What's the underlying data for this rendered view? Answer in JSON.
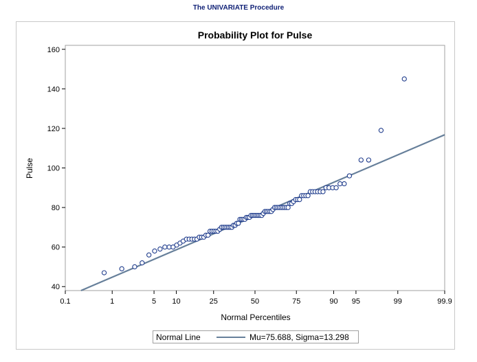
{
  "procedure_title": "The UNIVARIATE Procedure",
  "chart_data": {
    "type": "scatter",
    "title": "Probability Plot for Pulse",
    "xlabel": "Normal Percentiles",
    "ylabel": "Pulse",
    "x_scale": "normal-probability",
    "xlim": [
      0.1,
      99.9
    ],
    "ylim": [
      38,
      162
    ],
    "x_ticks": [
      0.1,
      1,
      5,
      10,
      25,
      50,
      75,
      90,
      95,
      99,
      99.9
    ],
    "x_tick_labels": [
      "0.1",
      "1",
      "5",
      "10",
      "25",
      "50",
      "75",
      "90",
      "95",
      "99",
      "99.9"
    ],
    "y_ticks": [
      40,
      60,
      80,
      100,
      120,
      140,
      160
    ],
    "y_tick_labels": [
      "40",
      "60",
      "80",
      "100",
      "120",
      "140",
      "160"
    ],
    "grid": false,
    "marker_color": "#1f3c8c",
    "line_color": "#667f9a",
    "normal_line": {
      "mu": 75.688,
      "sigma": 13.298
    },
    "points": [
      [
        0.7,
        47
      ],
      [
        1.5,
        49
      ],
      [
        2.5,
        50
      ],
      [
        3.3,
        52
      ],
      [
        4.2,
        56
      ],
      [
        5.1,
        58
      ],
      [
        6.1,
        59
      ],
      [
        7.1,
        60
      ],
      [
        8.1,
        60
      ],
      [
        9.1,
        60
      ],
      [
        10.1,
        61
      ],
      [
        11.1,
        62
      ],
      [
        12.1,
        63
      ],
      [
        13.2,
        64
      ],
      [
        14.2,
        64
      ],
      [
        15.2,
        64
      ],
      [
        16.2,
        64
      ],
      [
        17.2,
        64
      ],
      [
        18.2,
        65
      ],
      [
        19.2,
        65
      ],
      [
        20.2,
        65
      ],
      [
        21.2,
        66
      ],
      [
        22.2,
        66
      ],
      [
        23.2,
        68
      ],
      [
        24.2,
        68
      ],
      [
        25.2,
        68
      ],
      [
        26.2,
        68
      ],
      [
        27.2,
        68
      ],
      [
        28.3,
        69
      ],
      [
        29.3,
        70
      ],
      [
        30.3,
        70
      ],
      [
        31.3,
        70
      ],
      [
        32.3,
        70
      ],
      [
        33.3,
        70
      ],
      [
        34.3,
        70
      ],
      [
        35.3,
        70
      ],
      [
        36.3,
        71
      ],
      [
        37.3,
        71
      ],
      [
        38.3,
        72
      ],
      [
        39.3,
        72
      ],
      [
        40.3,
        74
      ],
      [
        41.3,
        74
      ],
      [
        42.3,
        74
      ],
      [
        43.4,
        74
      ],
      [
        44.4,
        75
      ],
      [
        45.4,
        75
      ],
      [
        46.4,
        75
      ],
      [
        47.4,
        76
      ],
      [
        48.4,
        76
      ],
      [
        49.4,
        76
      ],
      [
        50.4,
        76
      ],
      [
        51.4,
        76
      ],
      [
        52.4,
        76
      ],
      [
        53.4,
        76
      ],
      [
        54.4,
        76
      ],
      [
        55.4,
        77
      ],
      [
        56.4,
        78
      ],
      [
        57.4,
        78
      ],
      [
        58.4,
        78
      ],
      [
        59.5,
        78
      ],
      [
        60.5,
        78
      ],
      [
        61.5,
        79
      ],
      [
        62.5,
        80
      ],
      [
        63.5,
        80
      ],
      [
        64.5,
        80
      ],
      [
        65.5,
        80
      ],
      [
        66.5,
        80
      ],
      [
        67.5,
        80
      ],
      [
        68.5,
        80
      ],
      [
        69.5,
        80
      ],
      [
        70.5,
        80
      ],
      [
        71.5,
        82
      ],
      [
        72.5,
        82
      ],
      [
        73.5,
        83
      ],
      [
        74.6,
        84
      ],
      [
        75.6,
        84
      ],
      [
        76.6,
        84
      ],
      [
        77.6,
        86
      ],
      [
        78.6,
        86
      ],
      [
        79.6,
        86
      ],
      [
        80.6,
        86
      ],
      [
        81.6,
        88
      ],
      [
        82.6,
        88
      ],
      [
        83.6,
        88
      ],
      [
        84.6,
        88
      ],
      [
        85.6,
        88
      ],
      [
        86.6,
        88
      ],
      [
        87.6,
        90
      ],
      [
        88.6,
        90
      ],
      [
        89.7,
        90
      ],
      [
        90.7,
        90
      ],
      [
        91.7,
        92
      ],
      [
        92.7,
        92
      ],
      [
        93.8,
        96
      ],
      [
        95.8,
        104
      ],
      [
        96.8,
        104
      ],
      [
        98.0,
        119
      ],
      [
        99.25,
        145
      ]
    ]
  },
  "legend": {
    "title": "Normal Line",
    "entries": [
      {
        "label": "Mu=75.688, Sigma=13.298",
        "color": "#667f9a"
      }
    ]
  }
}
